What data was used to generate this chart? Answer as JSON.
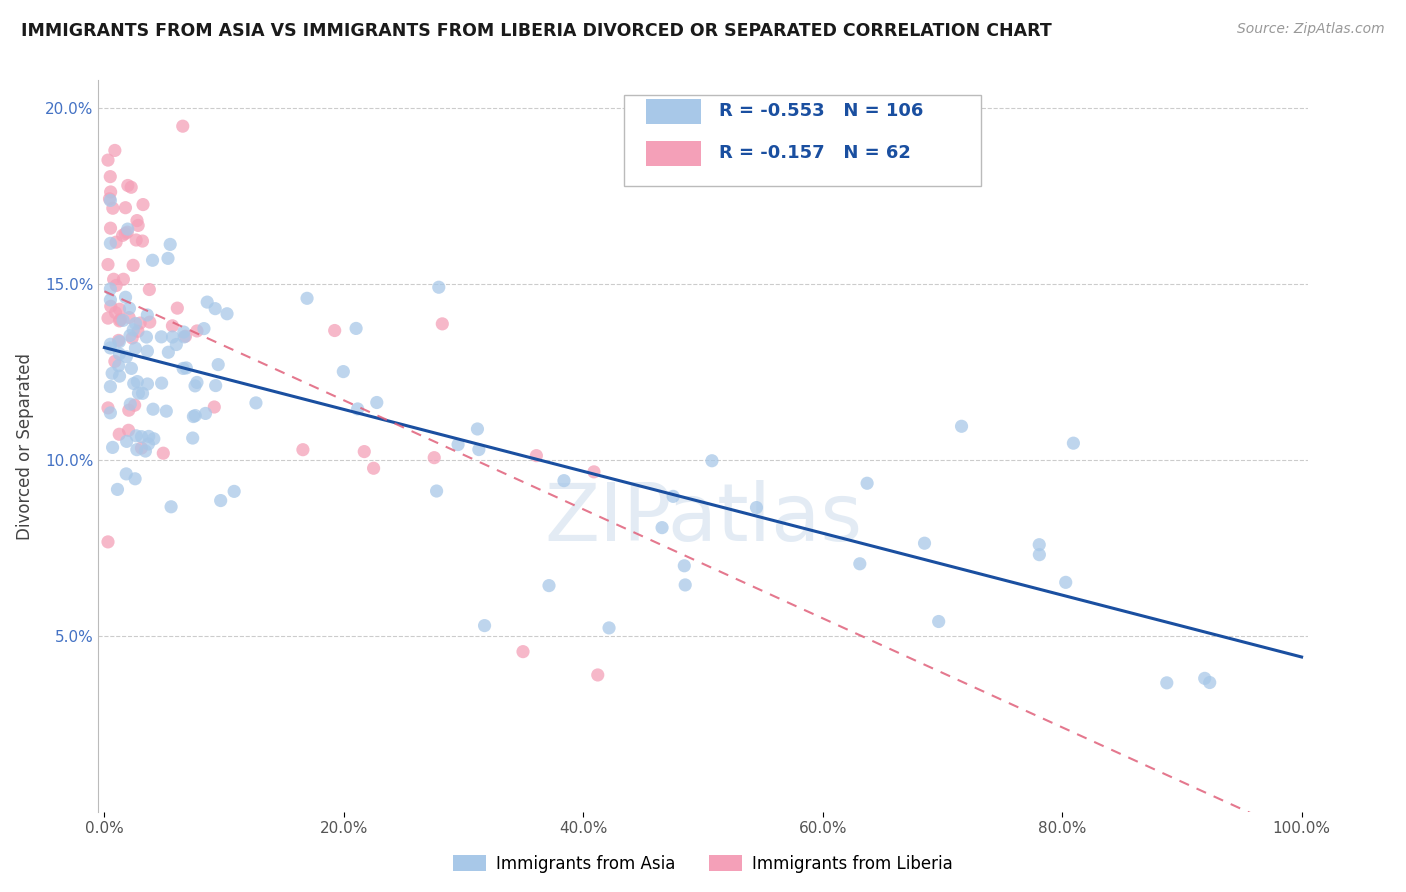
{
  "title": "IMMIGRANTS FROM ASIA VS IMMIGRANTS FROM LIBERIA DIVORCED OR SEPARATED CORRELATION CHART",
  "source": "Source: ZipAtlas.com",
  "ylabel": "Divorced or Separated",
  "legend_label_asia": "Immigrants from Asia",
  "legend_label_liberia": "Immigrants from Liberia",
  "R_asia": -0.553,
  "N_asia": 106,
  "R_liberia": -0.157,
  "N_liberia": 62,
  "color_asia": "#a8c8e8",
  "color_liberia": "#f4a0b8",
  "line_color_asia": "#1a4fa0",
  "line_color_liberia": "#e0607a",
  "background": "#ffffff",
  "watermark": "ZIPatlas",
  "asia_intercept": 0.132,
  "asia_slope": -0.088,
  "liberia_intercept": 0.148,
  "liberia_slope": -0.155
}
